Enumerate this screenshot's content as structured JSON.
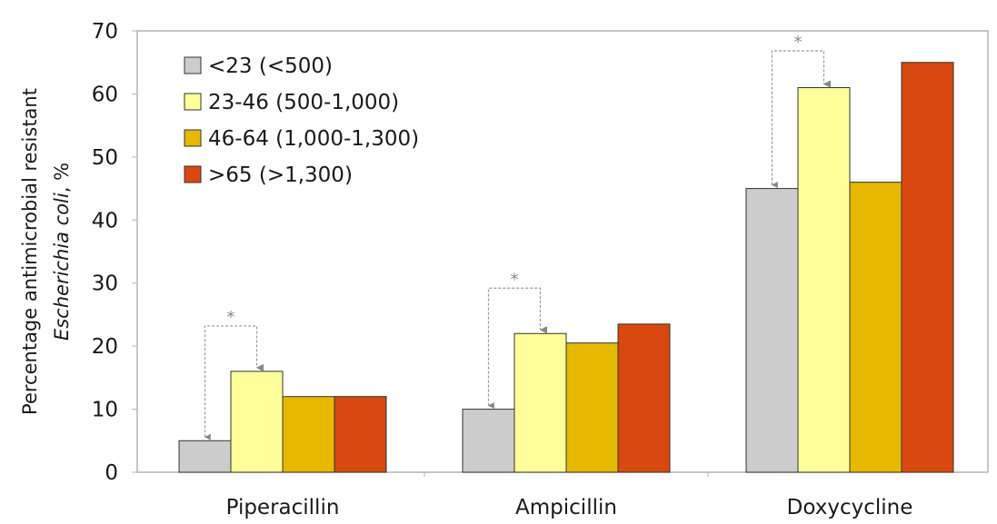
{
  "chart_data": {
    "type": "bar",
    "title": "",
    "xlabel": "",
    "ylabel_line1": "Percentage antimicrobial resistant",
    "ylabel_line2_italic": "Escherichia coli",
    "ylabel_line2_suffix": ", %",
    "ylim": [
      0,
      70
    ],
    "yticks": [
      0,
      10,
      20,
      30,
      40,
      50,
      60,
      70
    ],
    "ytick_labels": [
      "0",
      "10",
      "20",
      "30",
      "40",
      "50",
      "60",
      "70"
    ],
    "grid": false,
    "legend_position": "top-left",
    "categories": [
      "Piperacillin",
      "Ampicillin",
      "Doxycycline"
    ],
    "series": [
      {
        "name": "<23 (<500)",
        "color": "#cccccc",
        "values": [
          5,
          10,
          45
        ]
      },
      {
        "name": "23-46 (500-1,000)",
        "color": "#ffff99",
        "values": [
          16,
          22,
          61
        ]
      },
      {
        "name": "46-64 (1,000-1,300)",
        "color": "#e6b800",
        "values": [
          12,
          20.5,
          46
        ]
      },
      {
        "name": ">65 (>1,300)",
        "color": "#d9480f",
        "values": [
          12,
          23.5,
          65
        ]
      }
    ],
    "annotations": [
      {
        "category_index": 0,
        "from_series": 0,
        "to_series": 1,
        "label": "*"
      },
      {
        "category_index": 1,
        "from_series": 0,
        "to_series": 1,
        "label": "*"
      },
      {
        "category_index": 2,
        "from_series": 0,
        "to_series": 1,
        "label": "*"
      }
    ]
  }
}
